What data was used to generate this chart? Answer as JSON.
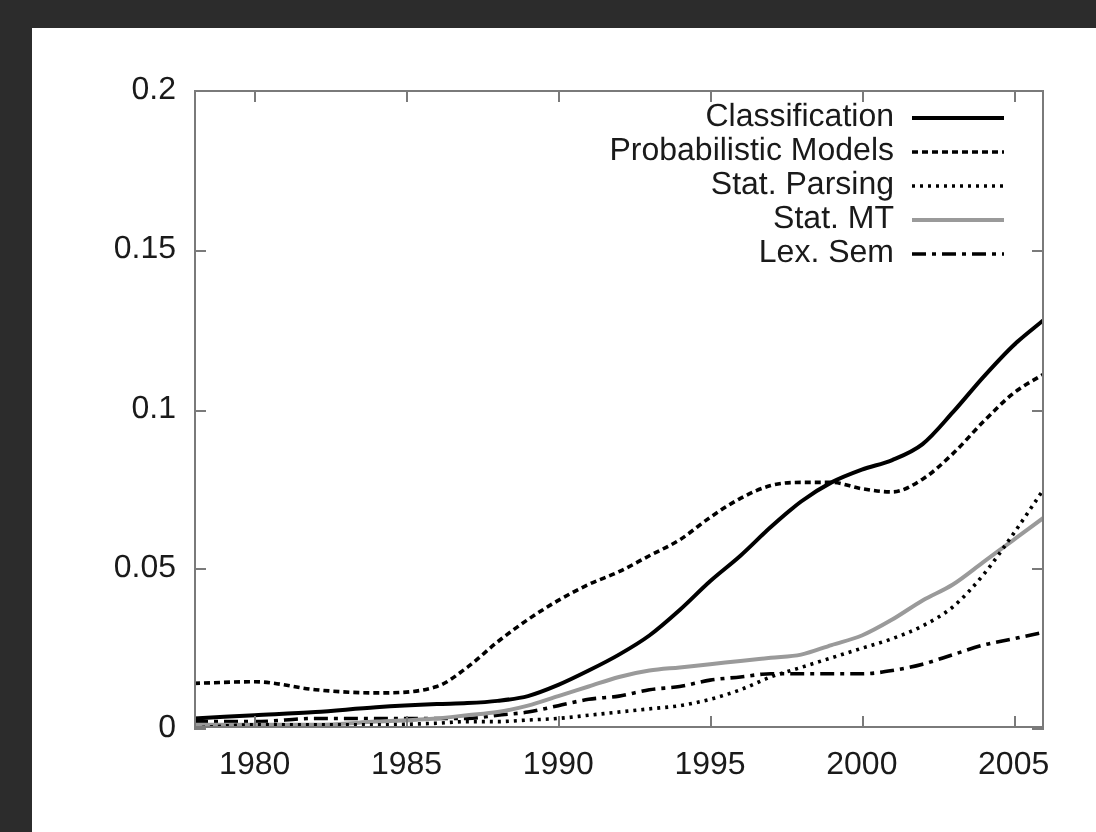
{
  "chart_data": {
    "type": "line",
    "x": [
      1978,
      1980,
      1982,
      1984,
      1986,
      1987,
      1988,
      1989,
      1990,
      1991,
      1992,
      1993,
      1994,
      1995,
      1996,
      1997,
      1998,
      1999,
      2000,
      2001,
      2002,
      2003,
      2004,
      2005,
      2006
    ],
    "series": [
      {
        "name": "Classification",
        "color": "#000000",
        "line_style": "solid",
        "values": [
          0.003,
          0.004,
          0.005,
          0.0065,
          0.0075,
          0.0078,
          0.0085,
          0.01,
          0.0135,
          0.018,
          0.023,
          0.029,
          0.037,
          0.046,
          0.054,
          0.063,
          0.071,
          0.077,
          0.081,
          0.084,
          0.089,
          0.099,
          0.11,
          0.12,
          0.128
        ]
      },
      {
        "name": "Probabilistic Models",
        "color": "#000000",
        "line_style": "dashed",
        "values": [
          0.014,
          0.0145,
          0.012,
          0.011,
          0.013,
          0.019,
          0.027,
          0.034,
          0.04,
          0.045,
          0.049,
          0.054,
          0.059,
          0.066,
          0.072,
          0.076,
          0.077,
          0.077,
          0.075,
          0.074,
          0.078,
          0.086,
          0.096,
          0.105,
          0.111
        ]
      },
      {
        "name": "Stat. Parsing",
        "color": "#000000",
        "line_style": "dotted",
        "values": [
          0.0,
          0.001,
          0.001,
          0.001,
          0.0015,
          0.002,
          0.002,
          0.0025,
          0.003,
          0.004,
          0.005,
          0.006,
          0.007,
          0.009,
          0.012,
          0.016,
          0.019,
          0.022,
          0.025,
          0.028,
          0.032,
          0.038,
          0.048,
          0.061,
          0.075
        ]
      },
      {
        "name": "Stat. MT",
        "color": "#9a9a9a",
        "line_style": "solid",
        "values": [
          0.001,
          0.001,
          0.001,
          0.002,
          0.003,
          0.004,
          0.005,
          0.007,
          0.01,
          0.013,
          0.016,
          0.018,
          0.019,
          0.02,
          0.021,
          0.022,
          0.023,
          0.026,
          0.029,
          0.034,
          0.04,
          0.045,
          0.052,
          0.059,
          0.066
        ]
      },
      {
        "name": "Lex. Sem",
        "color": "#000000",
        "line_style": "dashdot",
        "values": [
          0.002,
          0.002,
          0.003,
          0.003,
          0.003,
          0.003,
          0.004,
          0.005,
          0.007,
          0.009,
          0.01,
          0.012,
          0.013,
          0.015,
          0.016,
          0.017,
          0.017,
          0.017,
          0.017,
          0.018,
          0.02,
          0.023,
          0.026,
          0.028,
          0.03
        ]
      }
    ],
    "xlim": [
      1978,
      2006
    ],
    "xticks": [
      1980,
      1985,
      1990,
      1995,
      2000,
      2005
    ],
    "ylim": [
      0,
      0.2
    ],
    "yticks": [
      0,
      0.05,
      0.1,
      0.15,
      0.2
    ],
    "grid": false,
    "legend": "top right",
    "marker": "none"
  }
}
